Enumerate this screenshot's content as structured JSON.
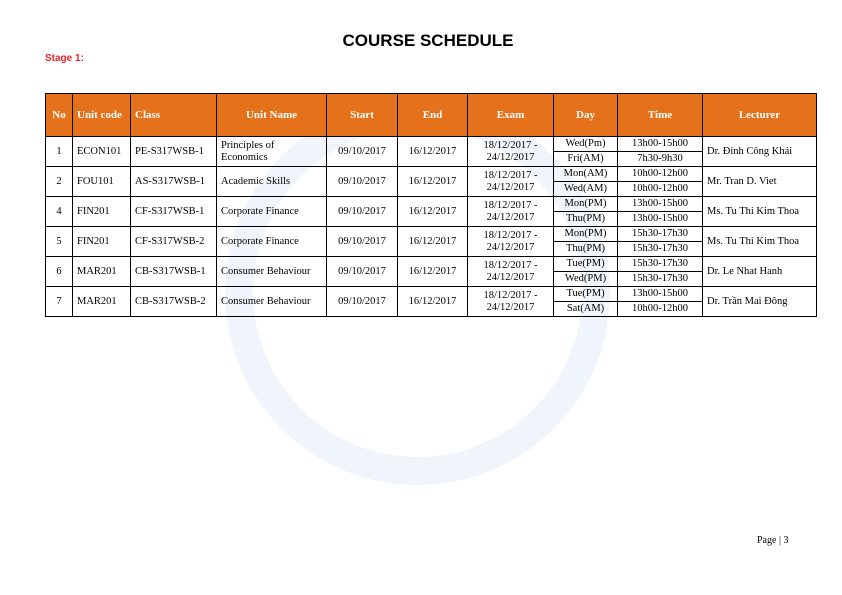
{
  "header": {
    "title": "COURSE SCHEDULE",
    "stage": "Stage 1:"
  },
  "table": {
    "columns": [
      "No",
      "Unit code",
      "Class",
      "Unit Name",
      "Start",
      "End",
      "Exam",
      "Day",
      "Time",
      "Lecturer"
    ],
    "rows": [
      {
        "no": 1,
        "unit_code": "ECON101",
        "class": "PE-S317WSB-1",
        "unit_name": "Principles of Economics",
        "start": "09/10/2017",
        "end": "16/12/2017",
        "exam": "18/12/2017 - 24/12/2017",
        "day": [
          "Wed(Pm)",
          "Fri(AM)"
        ],
        "time": [
          "13h00-15h00",
          "7h30-9h30"
        ],
        "lecturer": "Dr. Đinh Công Khải"
      },
      {
        "no": 2,
        "unit_code": "FOU101",
        "class": "AS-S317WSB-1",
        "unit_name": "Academic Skills",
        "start": "09/10/2017",
        "end": "16/12/2017",
        "exam": "18/12/2017 - 24/12/2017",
        "day": [
          "Mon(AM)",
          "Wed(AM)"
        ],
        "time": [
          "10h00-12h00",
          "10h00-12h00"
        ],
        "lecturer": "Mr. Tran D. Viet"
      },
      {
        "no": 4,
        "unit_code": "FIN201",
        "class": "CF-S317WSB-1",
        "unit_name": "Corporate Finance",
        "start": "09/10/2017",
        "end": "16/12/2017",
        "exam": "18/12/2017 - 24/12/2017",
        "day": [
          "Mon(PM)",
          "Thu(PM)"
        ],
        "time": [
          "13h00-15h00",
          "13h00-15h00"
        ],
        "lecturer": "Ms. Tu Thi Kim Thoa"
      },
      {
        "no": 5,
        "unit_code": "FIN201",
        "class": "CF-S317WSB-2",
        "unit_name": "Corporate Finance",
        "start": "09/10/2017",
        "end": "16/12/2017",
        "exam": "18/12/2017 - 24/12/2017",
        "day": [
          "Mon(PM)",
          "Thu(PM)"
        ],
        "time": [
          "15h30-17h30",
          "15h30-17h30"
        ],
        "lecturer": "Ms. Tu Thi Kim Thoa"
      },
      {
        "no": 6,
        "unit_code": "MAR201",
        "class": "CB-S317WSB-1",
        "unit_name": "Consumer Behaviour",
        "start": "09/10/2017",
        "end": "16/12/2017",
        "exam": "18/12/2017 - 24/12/2017",
        "day": [
          "Tue(PM)",
          "Wed(PM)"
        ],
        "time": [
          "15h30-17h30",
          "15h30-17h30"
        ],
        "lecturer": "Dr. Le Nhat Hanh"
      },
      {
        "no": 7,
        "unit_code": "MAR201",
        "class": "CB-S317WSB-2",
        "unit_name": "Consumer Behaviour",
        "start": "09/10/2017",
        "end": "16/12/2017",
        "exam": "18/12/2017 - 24/12/2017",
        "day": [
          "Tue(PM)",
          "Sat(AM)"
        ],
        "time": [
          "13h00-15h00",
          "10h00-12h00"
        ],
        "lecturer": "Dr. Trần Mai Đông"
      }
    ]
  },
  "footer": {
    "page": "Page | 3"
  }
}
